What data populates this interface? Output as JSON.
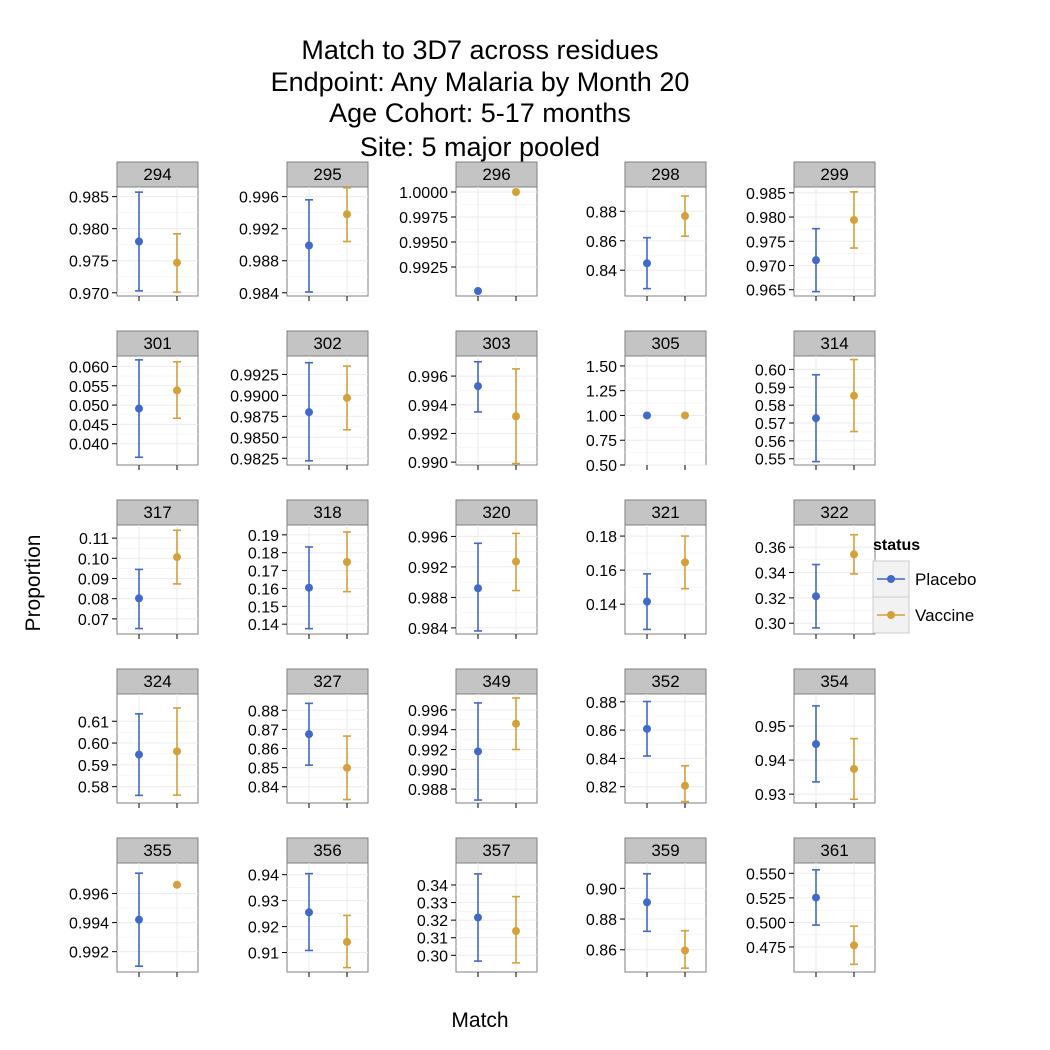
{
  "title_lines": [
    "Match to 3D7 across residues",
    "Endpoint: Any Malaria by Month 20",
    "Age Cohort: 5-17 months",
    "Site: 5 major pooled"
  ],
  "colors": {
    "Placebo": "#4169c9",
    "Vaccine": "#d4a03a",
    "strip_bg": "#c4c4c4",
    "grid": "#ebebeb"
  },
  "chart_data": {
    "type": "scatter",
    "subtype": "point-with-error-bars, faceted",
    "xlabel": "Match",
    "ylabel": "Proportion",
    "legend": {
      "title": "status",
      "position": "right",
      "entries": [
        "Placebo",
        "Vaccine"
      ]
    },
    "grid": true,
    "facets": [
      {
        "label": "294",
        "ylim": [
          0.9695,
          0.9865
        ],
        "ticks": [
          "0.970",
          "0.975",
          "0.980",
          "0.985"
        ],
        "series": [
          {
            "name": "Placebo",
            "y": 0.978,
            "lo": 0.9703,
            "hi": 0.9857
          },
          {
            "name": "Vaccine",
            "y": 0.9747,
            "lo": 0.9701,
            "hi": 0.9792
          }
        ]
      },
      {
        "label": "295",
        "ylim": [
          0.9836,
          0.9972
        ],
        "ticks": [
          "0.984",
          "0.988",
          "0.992",
          "0.996"
        ],
        "series": [
          {
            "name": "Placebo",
            "y": 0.9899,
            "lo": 0.9841,
            "hi": 0.9956
          },
          {
            "name": "Vaccine",
            "y": 0.9938,
            "lo": 0.9904,
            "hi": 0.9971
          }
        ]
      },
      {
        "label": "296",
        "ylim": [
          0.9896,
          1.0005
        ],
        "ticks": [
          "0.9925",
          "0.9950",
          "0.9975",
          "1.0000"
        ],
        "series": [
          {
            "name": "Placebo",
            "y": 0.9901,
            "lo": null,
            "hi": null
          },
          {
            "name": "Vaccine",
            "y": 1.0,
            "lo": null,
            "hi": null
          }
        ]
      },
      {
        "label": "298",
        "ylim": [
          0.8225,
          0.8965
        ],
        "ticks": [
          "0.84",
          "0.86",
          "0.88"
        ],
        "series": [
          {
            "name": "Placebo",
            "y": 0.8447,
            "lo": 0.8275,
            "hi": 0.8621
          },
          {
            "name": "Vaccine",
            "y": 0.8768,
            "lo": 0.8631,
            "hi": 0.8904
          }
        ]
      },
      {
        "label": "299",
        "ylim": [
          0.9637,
          0.9862
        ],
        "ticks": [
          "0.965",
          "0.970",
          "0.975",
          "0.980",
          "0.985"
        ],
        "series": [
          {
            "name": "Placebo",
            "y": 0.9711,
            "lo": 0.9646,
            "hi": 0.9776
          },
          {
            "name": "Vaccine",
            "y": 0.9794,
            "lo": 0.9736,
            "hi": 0.9852
          }
        ]
      },
      {
        "label": "301",
        "ylim": [
          0.0345,
          0.0627
        ],
        "ticks": [
          "0.040",
          "0.045",
          "0.050",
          "0.055",
          "0.060"
        ],
        "series": [
          {
            "name": "Placebo",
            "y": 0.0491,
            "lo": 0.0365,
            "hi": 0.0617
          },
          {
            "name": "Vaccine",
            "y": 0.0538,
            "lo": 0.0466,
            "hi": 0.0612
          }
        ]
      },
      {
        "label": "302",
        "ylim": [
          0.9817,
          0.9947
        ],
        "ticks": [
          "0.9825",
          "0.9850",
          "0.9875",
          "0.9900",
          "0.9925"
        ],
        "series": [
          {
            "name": "Placebo",
            "y": 0.988,
            "lo": 0.9822,
            "hi": 0.9939
          },
          {
            "name": "Vaccine",
            "y": 0.9897,
            "lo": 0.9859,
            "hi": 0.9935
          }
        ]
      },
      {
        "label": "303",
        "ylim": [
          0.9898,
          0.9974
        ],
        "ticks": [
          "0.990",
          "0.992",
          "0.994",
          "0.996"
        ],
        "series": [
          {
            "name": "Placebo",
            "y": 0.9953,
            "lo": 0.9935,
            "hi": 0.997
          },
          {
            "name": "Vaccine",
            "y": 0.9932,
            "lo": 0.9899,
            "hi": 0.9965
          }
        ]
      },
      {
        "label": "305",
        "ylim": [
          0.5,
          1.6
        ],
        "ticks": [
          "0.50",
          "0.75",
          "1.00",
          "1.25",
          "1.50"
        ],
        "series": [
          {
            "name": "Placebo",
            "y": 1.0,
            "lo": null,
            "hi": null
          },
          {
            "name": "Vaccine",
            "y": 1.0,
            "lo": null,
            "hi": null
          }
        ]
      },
      {
        "label": "314",
        "ylim": [
          0.5465,
          0.6075
        ],
        "ticks": [
          "0.55",
          "0.56",
          "0.57",
          "0.58",
          "0.59",
          "0.60"
        ],
        "series": [
          {
            "name": "Placebo",
            "y": 0.5727,
            "lo": 0.5484,
            "hi": 0.597
          },
          {
            "name": "Vaccine",
            "y": 0.5853,
            "lo": 0.5652,
            "hi": 0.6055
          }
        ]
      },
      {
        "label": "317",
        "ylim": [
          0.0625,
          0.1165
        ],
        "ticks": [
          "0.07",
          "0.08",
          "0.09",
          "0.10",
          "0.11"
        ],
        "series": [
          {
            "name": "Placebo",
            "y": 0.0802,
            "lo": 0.0652,
            "hi": 0.0945
          },
          {
            "name": "Vaccine",
            "y": 0.1006,
            "lo": 0.0873,
            "hi": 0.1139
          }
        ]
      },
      {
        "label": "318",
        "ylim": [
          0.1345,
          0.1955
        ],
        "ticks": [
          "0.14",
          "0.15",
          "0.16",
          "0.17",
          "0.18",
          "0.19"
        ],
        "series": [
          {
            "name": "Placebo",
            "y": 0.1604,
            "lo": 0.1375,
            "hi": 0.1832
          },
          {
            "name": "Vaccine",
            "y": 0.1748,
            "lo": 0.1582,
            "hi": 0.1916
          }
        ]
      },
      {
        "label": "320",
        "ylim": [
          0.9832,
          0.9975
        ],
        "ticks": [
          "0.984",
          "0.988",
          "0.992",
          "0.996"
        ],
        "series": [
          {
            "name": "Placebo",
            "y": 0.9892,
            "lo": 0.9836,
            "hi": 0.9951
          },
          {
            "name": "Vaccine",
            "y": 0.9927,
            "lo": 0.9889,
            "hi": 0.9964
          }
        ]
      },
      {
        "label": "321",
        "ylim": [
          0.1225,
          0.1865
        ],
        "ticks": [
          "0.14",
          "0.16",
          "0.18"
        ],
        "series": [
          {
            "name": "Placebo",
            "y": 0.1415,
            "lo": 0.1252,
            "hi": 0.1578
          },
          {
            "name": "Vaccine",
            "y": 0.1646,
            "lo": 0.1491,
            "hi": 0.18
          }
        ]
      },
      {
        "label": "322",
        "ylim": [
          0.2915,
          0.3775
        ],
        "ticks": [
          "0.30",
          "0.32",
          "0.34",
          "0.36"
        ],
        "series": [
          {
            "name": "Placebo",
            "y": 0.3213,
            "lo": 0.2963,
            "hi": 0.3463
          },
          {
            "name": "Vaccine",
            "y": 0.3543,
            "lo": 0.3389,
            "hi": 0.3698
          }
        ]
      },
      {
        "label": "324",
        "ylim": [
          0.5725,
          0.6225
        ],
        "ticks": [
          "0.58",
          "0.59",
          "0.60",
          "0.61"
        ],
        "series": [
          {
            "name": "Placebo",
            "y": 0.5947,
            "lo": 0.576,
            "hi": 0.6134
          },
          {
            "name": "Vaccine",
            "y": 0.5962,
            "lo": 0.5761,
            "hi": 0.6161
          }
        ]
      },
      {
        "label": "327",
        "ylim": [
          0.8315,
          0.8885
        ],
        "ticks": [
          "0.84",
          "0.85",
          "0.86",
          "0.87",
          "0.88"
        ],
        "series": [
          {
            "name": "Placebo",
            "y": 0.8675,
            "lo": 0.8513,
            "hi": 0.8836
          },
          {
            "name": "Vaccine",
            "y": 0.8499,
            "lo": 0.8333,
            "hi": 0.8665
          }
        ]
      },
      {
        "label": "349",
        "ylim": [
          0.9866,
          0.9976
        ],
        "ticks": [
          "0.988",
          "0.990",
          "0.992",
          "0.994",
          "0.996"
        ],
        "series": [
          {
            "name": "Placebo",
            "y": 0.9918,
            "lo": 0.9869,
            "hi": 0.9967
          },
          {
            "name": "Vaccine",
            "y": 0.9946,
            "lo": 0.992,
            "hi": 0.9972
          }
        ]
      },
      {
        "label": "352",
        "ylim": [
          0.8085,
          0.8855
        ],
        "ticks": [
          "0.82",
          "0.84",
          "0.86",
          "0.88"
        ],
        "series": [
          {
            "name": "Placebo",
            "y": 0.8609,
            "lo": 0.8417,
            "hi": 0.8802
          },
          {
            "name": "Vaccine",
            "y": 0.8207,
            "lo": 0.8095,
            "hi": 0.8348
          }
        ]
      },
      {
        "label": "354",
        "ylim": [
          0.9274,
          0.9594
        ],
        "ticks": [
          "0.93",
          "0.94",
          "0.95"
        ],
        "series": [
          {
            "name": "Placebo",
            "y": 0.9447,
            "lo": 0.9336,
            "hi": 0.9559
          },
          {
            "name": "Vaccine",
            "y": 0.9374,
            "lo": 0.9285,
            "hi": 0.9463
          }
        ]
      },
      {
        "label": "355",
        "ylim": [
          0.9906,
          0.9981
        ],
        "ticks": [
          "0.992",
          "0.994",
          "0.996"
        ],
        "series": [
          {
            "name": "Placebo",
            "y": 0.9942,
            "lo": 0.991,
            "hi": 0.9974
          },
          {
            "name": "Vaccine",
            "y": 0.9966,
            "lo": null,
            "hi": null
          }
        ]
      },
      {
        "label": "356",
        "ylim": [
          0.9025,
          0.9445
        ],
        "ticks": [
          "0.91",
          "0.92",
          "0.93",
          "0.94"
        ],
        "series": [
          {
            "name": "Placebo",
            "y": 0.9255,
            "lo": 0.9108,
            "hi": 0.9404
          },
          {
            "name": "Vaccine",
            "y": 0.9141,
            "lo": 0.9042,
            "hi": 0.9243
          }
        ]
      },
      {
        "label": "357",
        "ylim": [
          0.2905,
          0.3525
        ],
        "ticks": [
          "0.30",
          "0.31",
          "0.32",
          "0.33",
          "0.34"
        ],
        "series": [
          {
            "name": "Placebo",
            "y": 0.3215,
            "lo": 0.2967,
            "hi": 0.3463
          },
          {
            "name": "Vaccine",
            "y": 0.3138,
            "lo": 0.2957,
            "hi": 0.3334
          }
        ]
      },
      {
        "label": "359",
        "ylim": [
          0.8455,
          0.9165
        ],
        "ticks": [
          "0.86",
          "0.88",
          "0.90"
        ],
        "series": [
          {
            "name": "Placebo",
            "y": 0.8909,
            "lo": 0.872,
            "hi": 0.9095
          },
          {
            "name": "Vaccine",
            "y": 0.8595,
            "lo": 0.848,
            "hi": 0.8724
          }
        ]
      },
      {
        "label": "361",
        "ylim": [
          0.4495,
          0.5605
        ],
        "ticks": [
          "0.475",
          "0.500",
          "0.525",
          "0.550"
        ],
        "series": [
          {
            "name": "Placebo",
            "y": 0.5253,
            "lo": 0.4973,
            "hi": 0.5536
          },
          {
            "name": "Vaccine",
            "y": 0.4767,
            "lo": 0.4573,
            "hi": 0.4962
          }
        ]
      }
    ]
  }
}
